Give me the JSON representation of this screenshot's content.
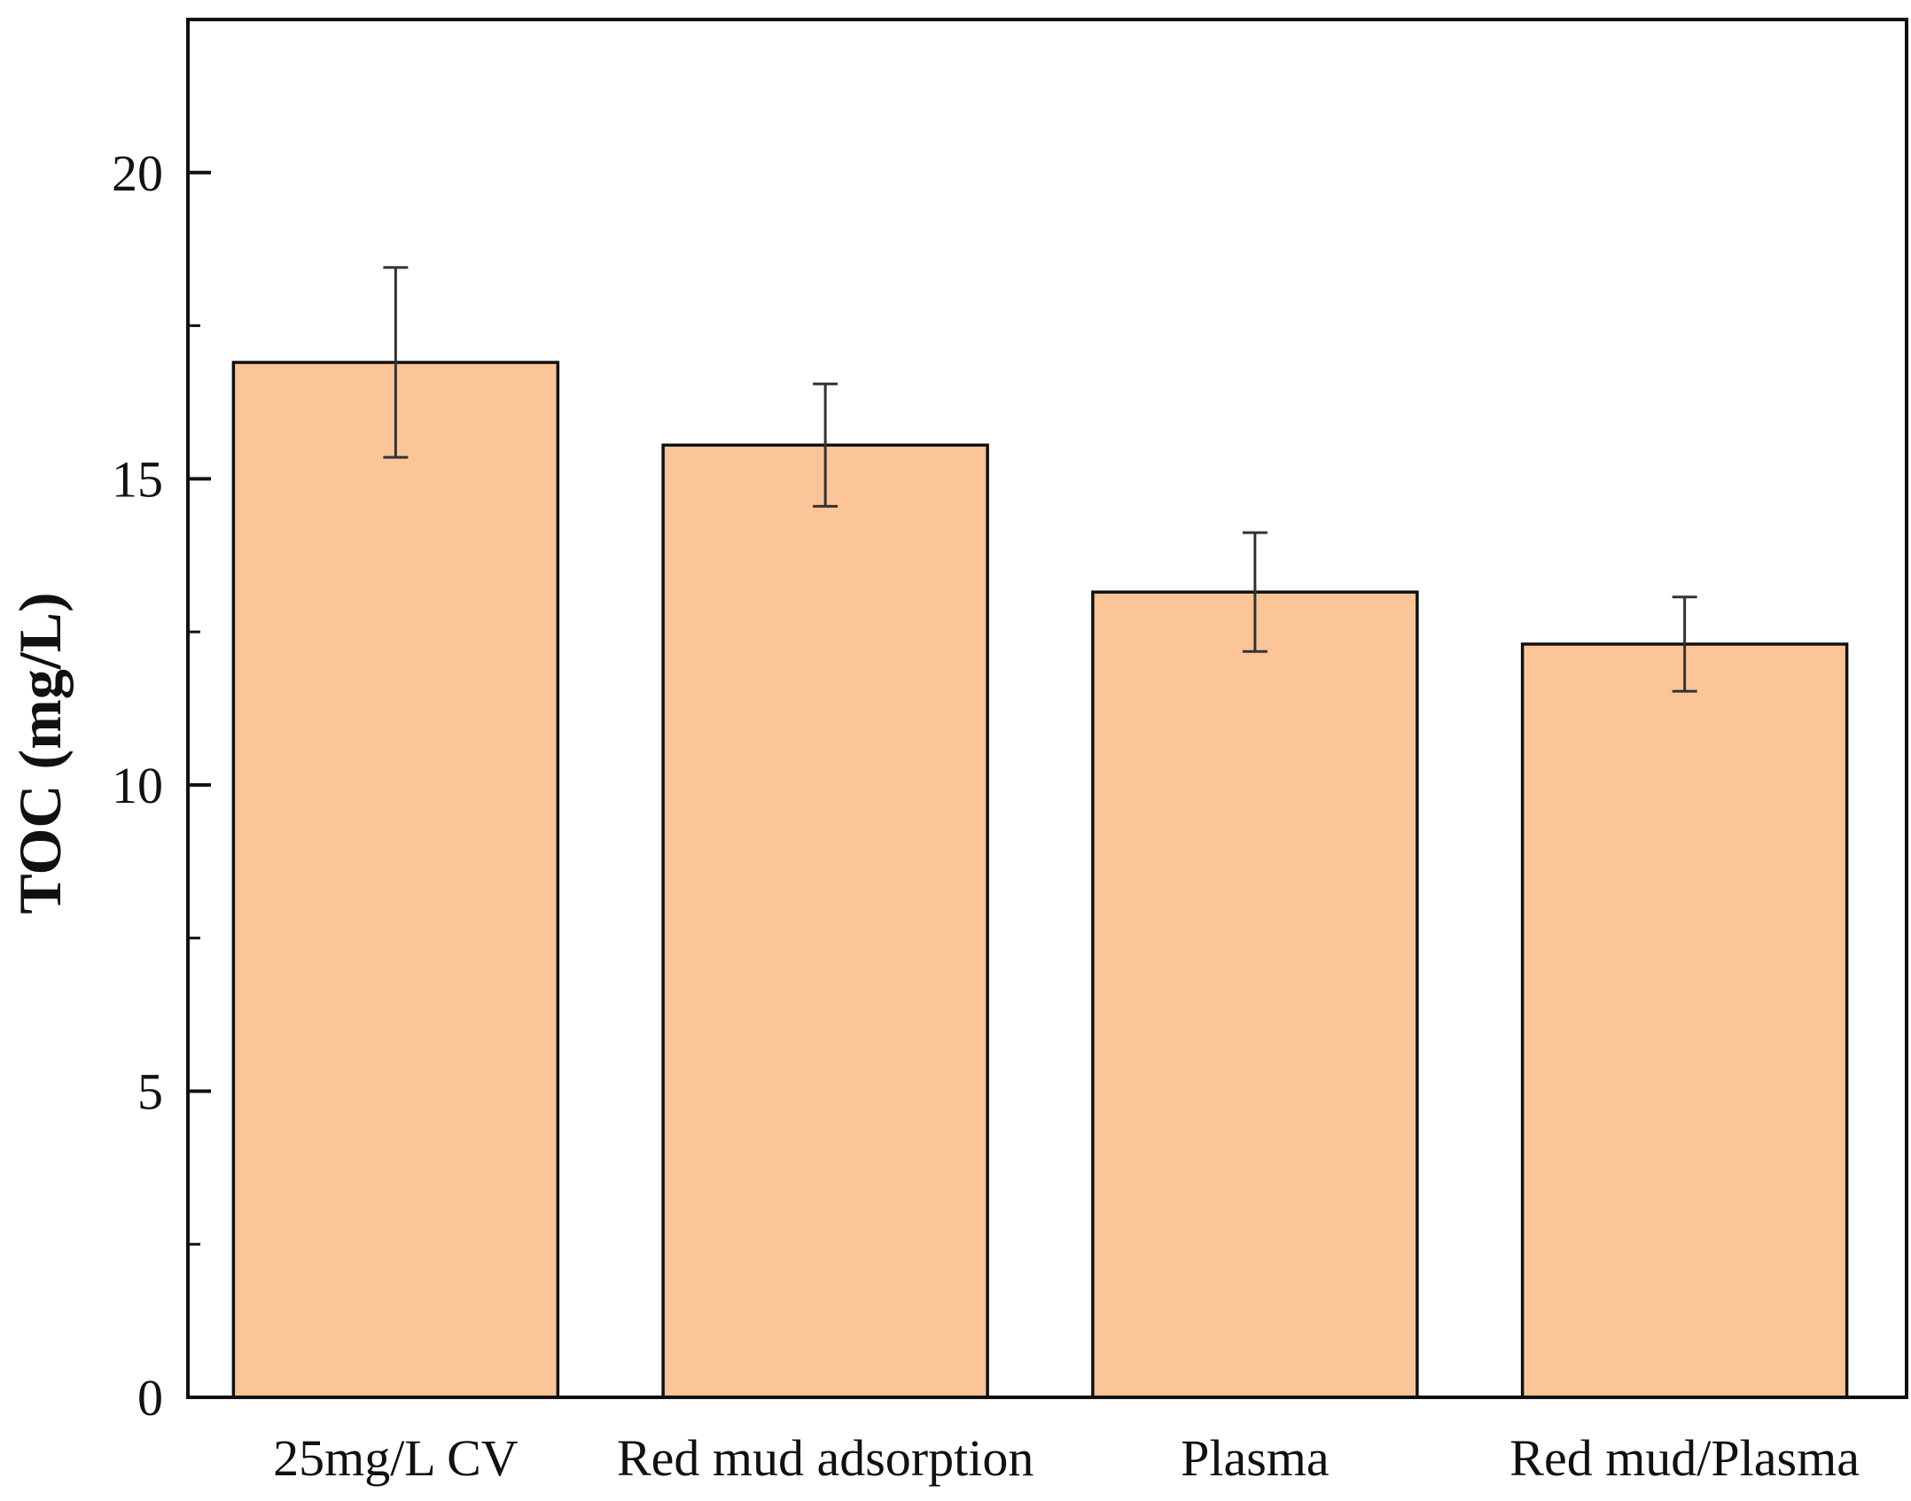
{
  "chart_data": {
    "type": "bar",
    "title": "",
    "xlabel": "",
    "ylabel": "TOC (mg/L)",
    "ylim": [
      0,
      22.5
    ],
    "yticks": [
      0,
      5,
      10,
      15,
      20
    ],
    "categories": [
      "25mg/L CV",
      "Red mud adsorption",
      "Plasma",
      "Red mud/Plasma"
    ],
    "series": [
      {
        "name": "TOC",
        "values": [
          16.9,
          15.55,
          13.15,
          12.3
        ],
        "errors": [
          1.55,
          1.0,
          0.97,
          0.77
        ]
      }
    ],
    "grid": false,
    "legend": "none",
    "colors": {
      "bar_fill": "#FCC597",
      "bar_stroke": "#111111",
      "axis": "#111111",
      "error_bar": "#333333"
    }
  }
}
